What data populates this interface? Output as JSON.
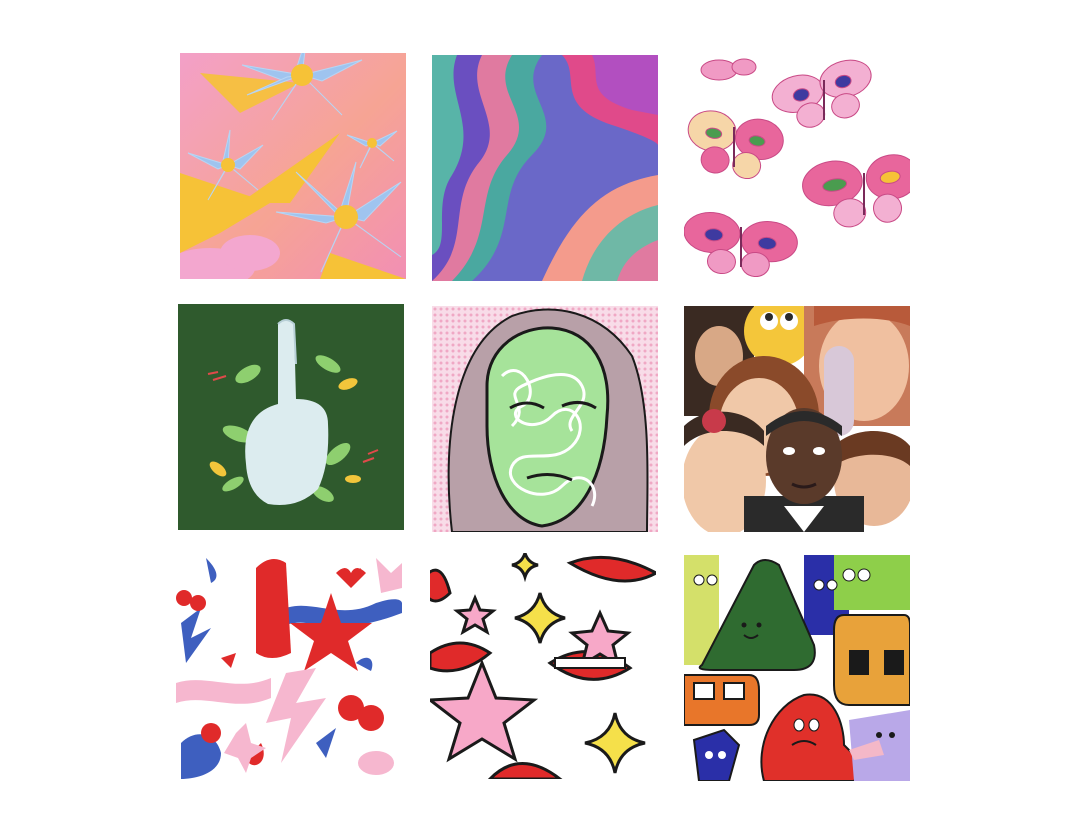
{
  "gallery": {
    "tiles": [
      {
        "subject": "flowers-and-sun-rays",
        "palette": [
          "#f19ab8",
          "#f7a08a",
          "#9fc4ef",
          "#f6c237"
        ]
      },
      {
        "subject": "psychedelic-waves",
        "palette": [
          "#6a68c8",
          "#4aa8a0",
          "#e07aa0",
          "#f49b8c"
        ]
      },
      {
        "subject": "butterflies",
        "palette": [
          "#e8669c",
          "#f4b9d4",
          "#4a9c4f",
          "#3e3aa0"
        ]
      },
      {
        "subject": "hand-and-leaves",
        "palette": [
          "#2f5a2d",
          "#dcecef",
          "#8ecf6f",
          "#f2c53b"
        ]
      },
      {
        "subject": "scribbled-face-portrait",
        "palette": [
          "#a6e39a",
          "#1a1a1a",
          "#f4a9c4",
          "#ffffff"
        ]
      },
      {
        "subject": "reaction-faces-collage",
        "palette": [
          "#f0c8a8",
          "#5a3a2a",
          "#2a2a2a",
          "#f4c63a"
        ]
      },
      {
        "subject": "red-blue-pink-shapes",
        "palette": [
          "#e02a2a",
          "#3e5fbf",
          "#f6b7cf",
          "#ffffff"
        ]
      },
      {
        "subject": "lips-and-stars",
        "palette": [
          "#e02a2a",
          "#f7a8c8",
          "#f5e04a",
          "#1a1a1a"
        ]
      },
      {
        "subject": "cartoon-monsters",
        "palette": [
          "#2f6b30",
          "#e8a23a",
          "#e0302a",
          "#2a2fa8"
        ]
      }
    ]
  }
}
